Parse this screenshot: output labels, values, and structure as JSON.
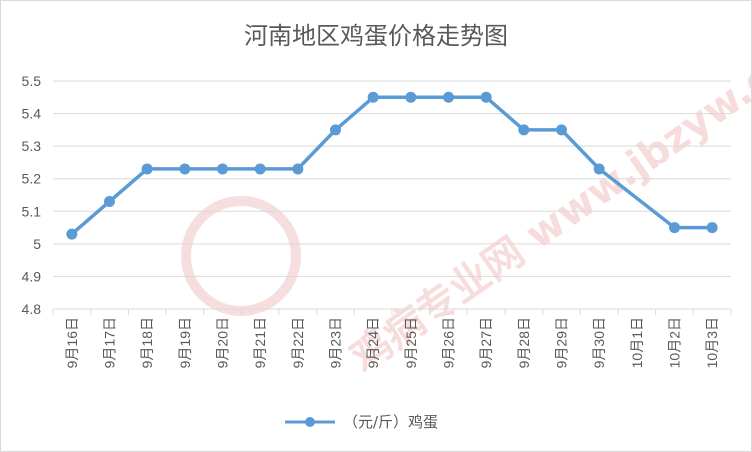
{
  "chart_data": {
    "type": "line",
    "title": "河南地区鸡蛋价格走势图",
    "categories": [
      "9月16日",
      "9月17日",
      "9月18日",
      "9月19日",
      "9月20日",
      "9月21日",
      "9月22日",
      "9月23日",
      "9月24日",
      "9月25日",
      "9月26日",
      "9月27日",
      "9月28日",
      "9月29日",
      "9月30日",
      "10月1日",
      "10月2日",
      "10月3日"
    ],
    "series": [
      {
        "name": "（元/斤）鸡蛋",
        "values": [
          5.03,
          5.13,
          5.23,
          5.23,
          5.23,
          5.23,
          5.23,
          5.35,
          5.45,
          5.45,
          5.45,
          5.45,
          5.35,
          5.35,
          5.23,
          null,
          5.05,
          5.05
        ],
        "color": "#5b9bd5"
      }
    ],
    "yticks": [
      "4.8",
      "4.9",
      "5",
      "5.1",
      "5.2",
      "5.3",
      "5.4",
      "5.5"
    ],
    "ylim": [
      4.8,
      5.5
    ],
    "grid": true,
    "legend_position": "bottom",
    "gap_handling": "connect"
  },
  "watermark": {
    "text": "鸡病专业网 www.jbzyw.com 为行业人服务",
    "color": "#e8b0b0"
  }
}
